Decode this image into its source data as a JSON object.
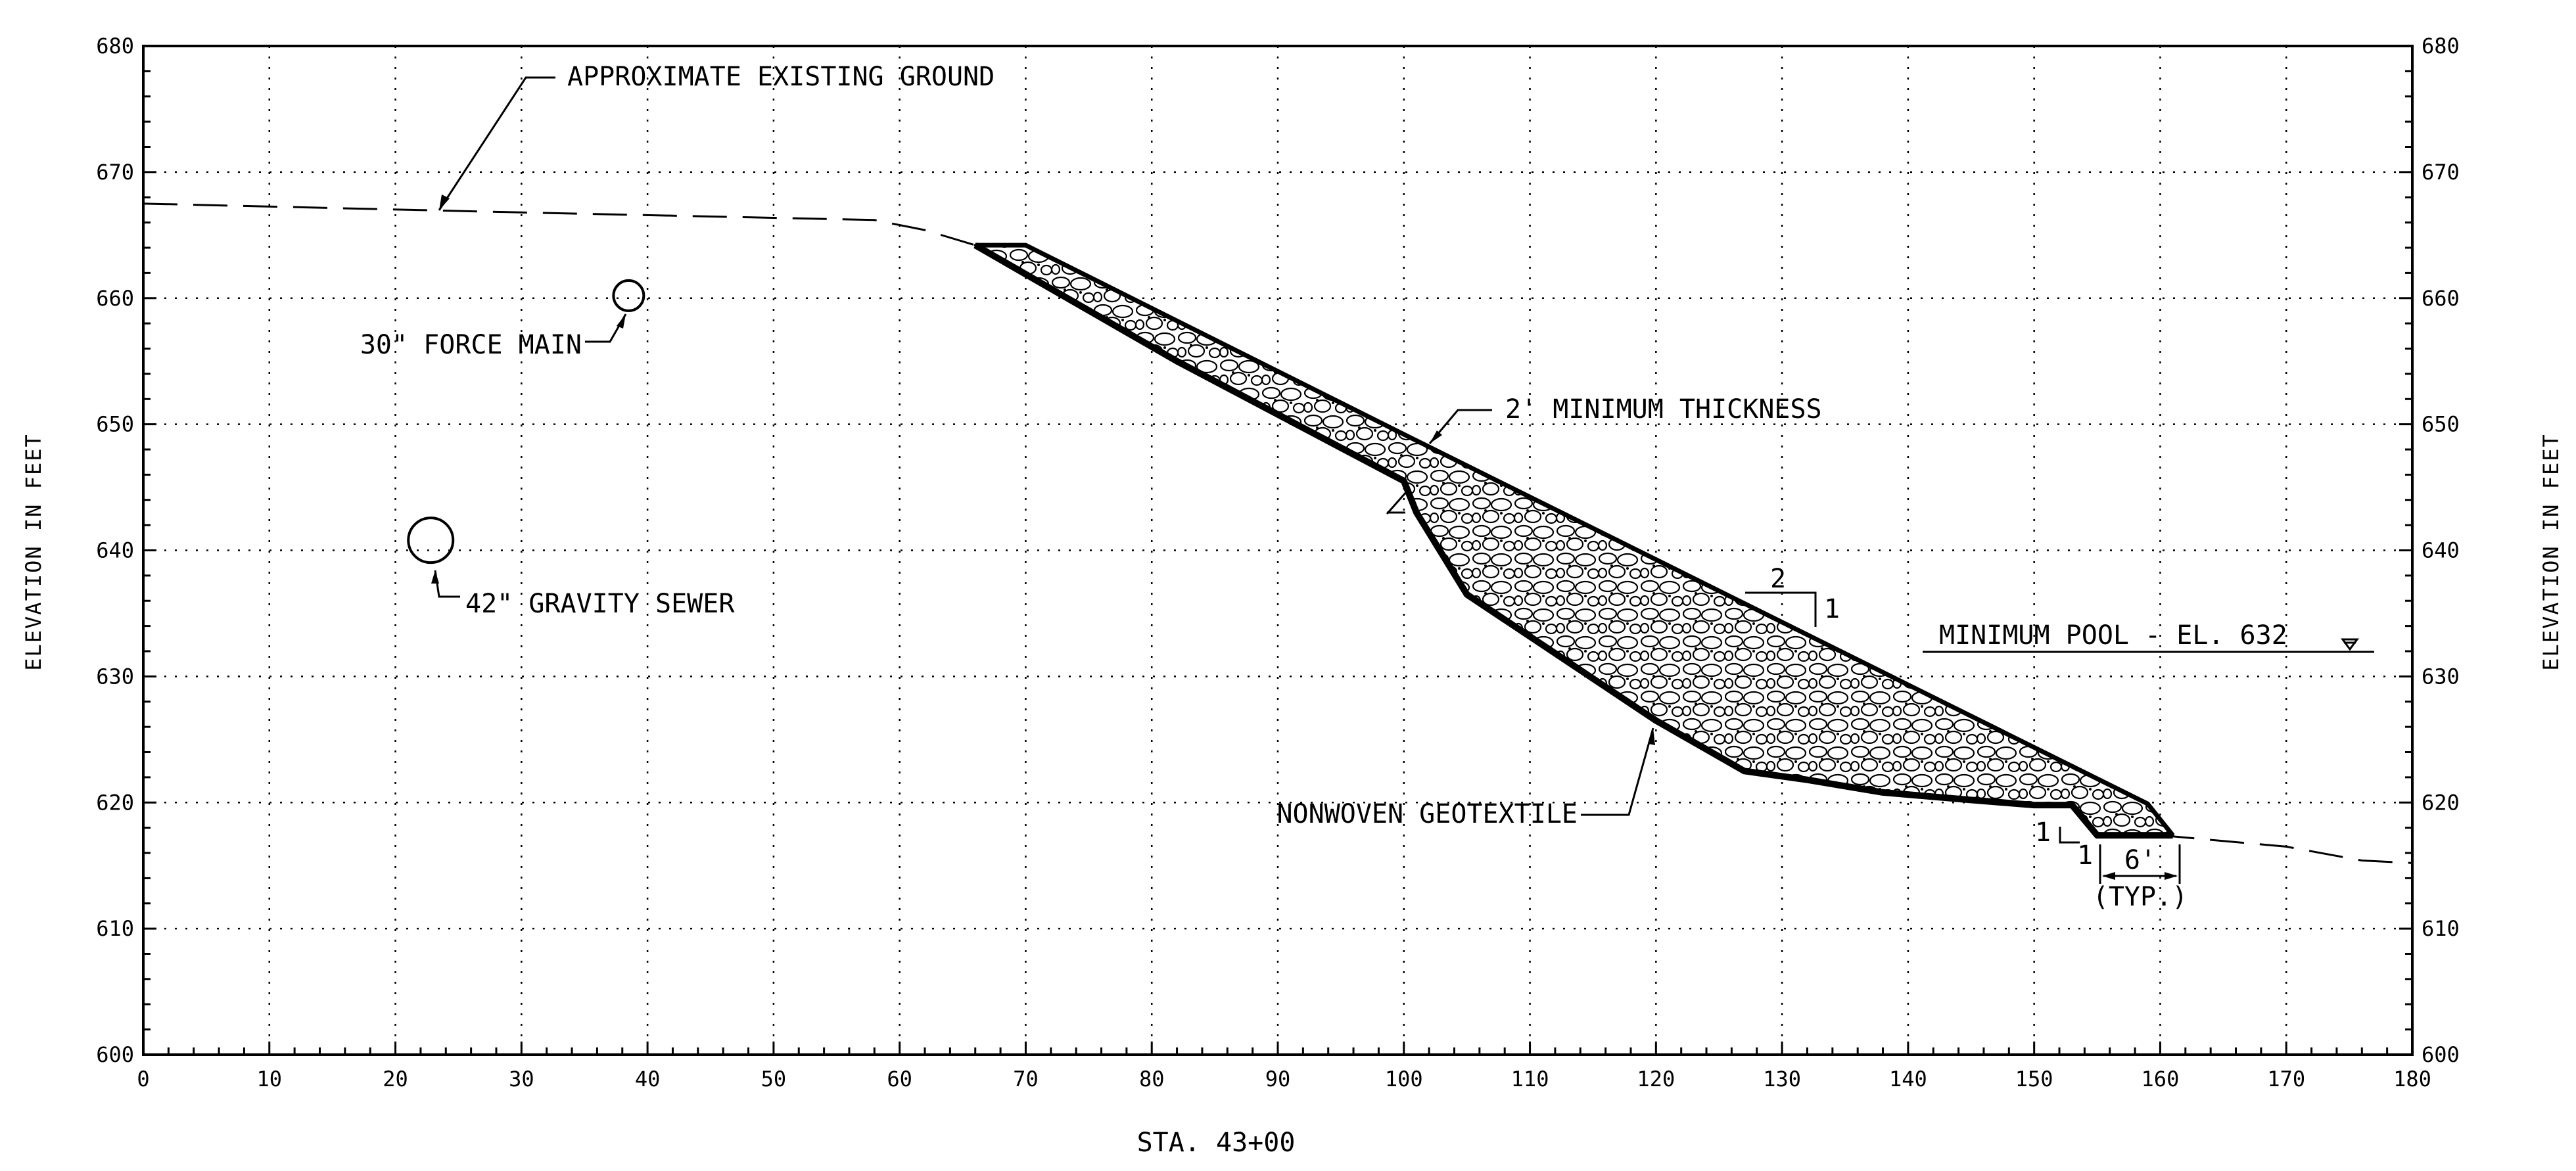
{
  "axes": {
    "x_label": "STA. 43+00",
    "y_label_left": "ELEVATION IN FEET",
    "y_label_right": "ELEVATION IN FEET",
    "x_range": [
      0,
      180
    ],
    "y_range": [
      600,
      680
    ],
    "x_ticks": [
      "0",
      "10",
      "20",
      "30",
      "40",
      "50",
      "60",
      "70",
      "80",
      "90",
      "100",
      "110",
      "120",
      "130",
      "140",
      "150",
      "160",
      "170",
      "180"
    ],
    "y_ticks": [
      "600",
      "610",
      "620",
      "630",
      "640",
      "650",
      "660",
      "670",
      "680"
    ],
    "grid": true
  },
  "annotations": {
    "existing_ground": "APPROXIMATE EXISTING GROUND",
    "force_main": "30\" FORCE MAIN",
    "gravity_sewer": "42\" GRAVITY SEWER",
    "min_thickness": "2' MINIMUM THICKNESS",
    "slope_run": "2",
    "slope_rise": "1",
    "min_pool": "MINIMUM POOL - EL. 632",
    "geotextile": "NONWOVEN GEOTEXTILE",
    "toe_rise": "1",
    "toe_run": "1",
    "toe_width": "6'",
    "typ": "(TYP.)"
  },
  "chart_data": {
    "type": "line",
    "title": "",
    "xlabel": "STA. 43+00",
    "ylabel": "ELEVATION IN FEET",
    "xlim": [
      0,
      180
    ],
    "ylim": [
      600,
      680
    ],
    "series": [
      {
        "name": "APPROXIMATE EXISTING GROUND",
        "x": [
          0,
          30,
          58,
          62,
          66,
          160,
          170,
          176,
          180
        ],
        "y": [
          667.5,
          666.8,
          666.2,
          665.4,
          664.2,
          617.4,
          616.5,
          615.4,
          615.2
        ]
      },
      {
        "name": "NONWOVEN GEOTEXTILE",
        "x": [
          66,
          82,
          100,
          101,
          105,
          120,
          127,
          132,
          138,
          145,
          150,
          153,
          155,
          161
        ],
        "y": [
          664.2,
          655,
          645.5,
          643,
          636.5,
          626.5,
          622.5,
          621.8,
          620.8,
          620.2,
          619.8,
          619.8,
          617.4,
          617.4
        ]
      },
      {
        "name": "riprap top surface",
        "x": [
          66,
          70,
          100,
          159,
          161
        ],
        "y": [
          664.2,
          664.2,
          649.2,
          619.9,
          617.4
        ]
      }
    ],
    "points": [
      {
        "name": "30\" FORCE MAIN",
        "x": 38.5,
        "y": 660.2
      },
      {
        "name": "42\" GRAVITY SEWER",
        "x": 22.8,
        "y": 640.8
      }
    ],
    "reference_lines": [
      {
        "name": "MINIMUM POOL - EL. 632",
        "y": 632
      }
    ]
  },
  "colors": {
    "ink": "#000000",
    "paper": "#ffffff"
  }
}
